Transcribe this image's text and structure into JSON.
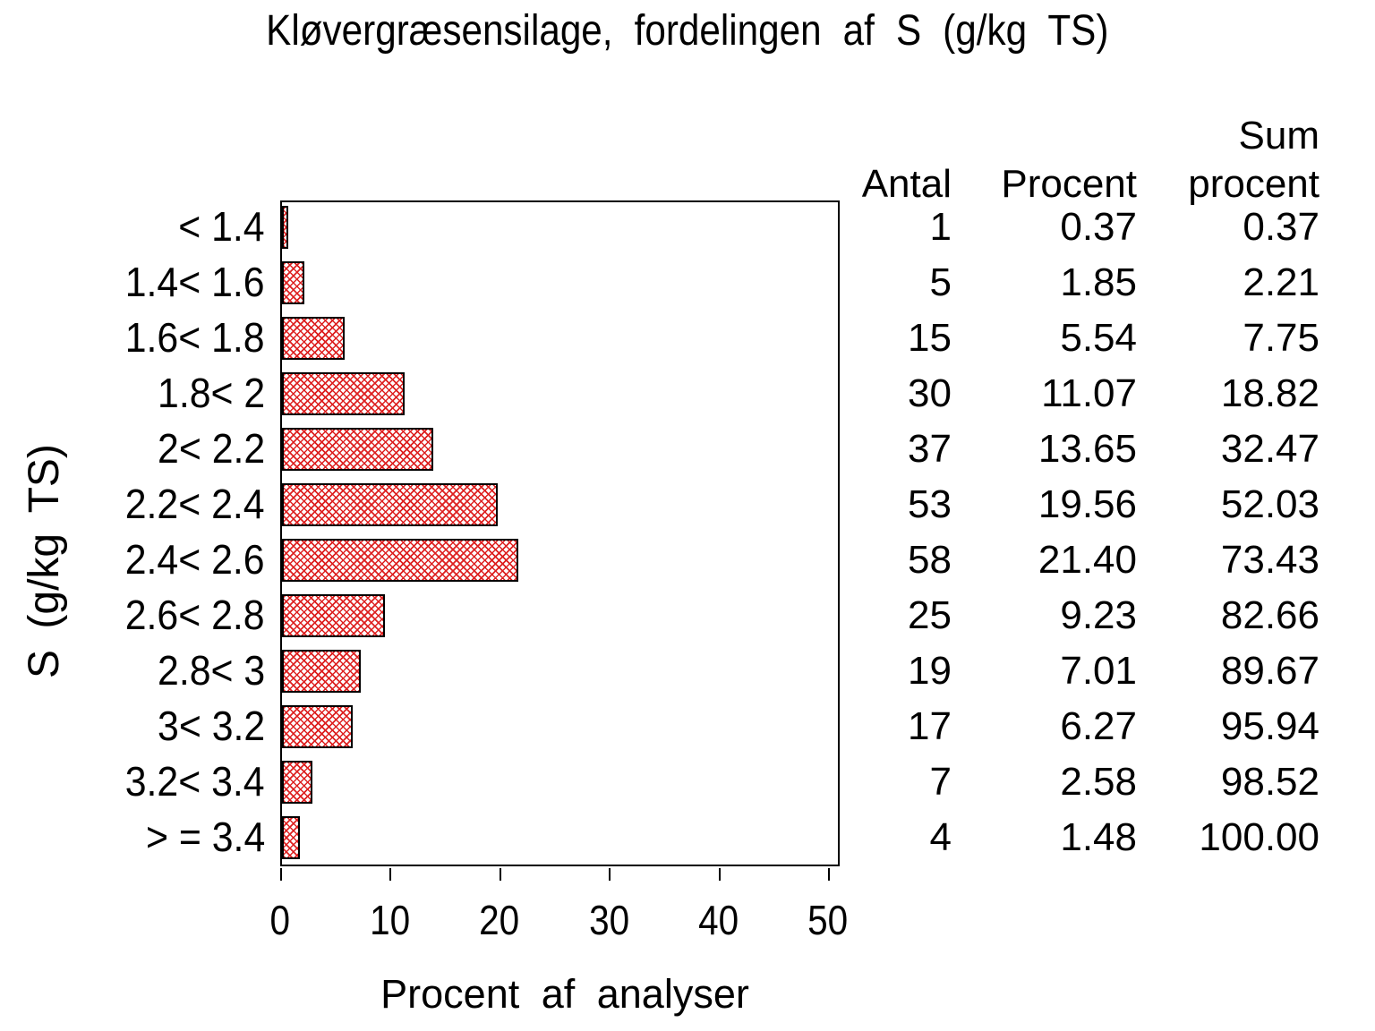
{
  "title": "Kløvergræsensilage, fordelingen af S (g/kg TS)",
  "y_axis_title": "S (g/kg TS)",
  "x_axis_title": "Procent af analyser",
  "table": {
    "headers": {
      "antal": "Antal",
      "procent": "Procent",
      "sum_line1": "Sum",
      "sum_line2": "procent"
    },
    "rows": [
      {
        "antal": "1",
        "procent": "0.37",
        "sum": "0.37"
      },
      {
        "antal": "5",
        "procent": "1.85",
        "sum": "2.21"
      },
      {
        "antal": "15",
        "procent": "5.54",
        "sum": "7.75"
      },
      {
        "antal": "30",
        "procent": "11.07",
        "sum": "18.82"
      },
      {
        "antal": "37",
        "procent": "13.65",
        "sum": "32.47"
      },
      {
        "antal": "53",
        "procent": "19.56",
        "sum": "52.03"
      },
      {
        "antal": "58",
        "procent": "21.40",
        "sum": "73.43"
      },
      {
        "antal": "25",
        "procent": "9.23",
        "sum": "82.66"
      },
      {
        "antal": "19",
        "procent": "7.01",
        "sum": "89.67"
      },
      {
        "antal": "17",
        "procent": "6.27",
        "sum": "95.94"
      },
      {
        "antal": "7",
        "procent": "2.58",
        "sum": "98.52"
      },
      {
        "antal": "4",
        "procent": "1.48",
        "sum": "100.00"
      }
    ]
  },
  "chart_data": {
    "type": "bar",
    "orientation": "horizontal",
    "title": "Kløvergræsensilage, fordelingen af S (g/kg TS)",
    "xlabel": "Procent af analyser",
    "ylabel": "S (g/kg TS)",
    "categories": [
      "< 1.4",
      "1.4< 1.6",
      "1.6< 1.8",
      "1.8< 2",
      "2< 2.2",
      "2.2< 2.4",
      "2.4< 2.6",
      "2.6< 2.8",
      "2.8< 3",
      "3< 3.2",
      "3.2< 3.4",
      "> = 3.4"
    ],
    "series": [
      {
        "name": "Antal",
        "values": [
          1,
          5,
          15,
          30,
          37,
          53,
          58,
          25,
          19,
          17,
          7,
          4
        ]
      },
      {
        "name": "Procent",
        "values": [
          0.37,
          1.85,
          5.54,
          11.07,
          13.65,
          19.56,
          21.4,
          9.23,
          7.01,
          6.27,
          2.58,
          1.48
        ]
      },
      {
        "name": "Sum procent",
        "values": [
          0.37,
          2.21,
          7.75,
          18.82,
          32.47,
          52.03,
          73.43,
          82.66,
          89.67,
          95.94,
          98.52,
          100.0
        ]
      }
    ],
    "bar_series": "Procent",
    "xlim": [
      0,
      50
    ],
    "xticks": [
      0,
      10,
      20,
      30,
      40,
      50
    ],
    "grid": false,
    "legend_position": "none",
    "bar_fill_style": "red-crosshatch",
    "bar_hatch_color": "#dd2020",
    "bar_border_color": "#000000",
    "frame": true
  }
}
